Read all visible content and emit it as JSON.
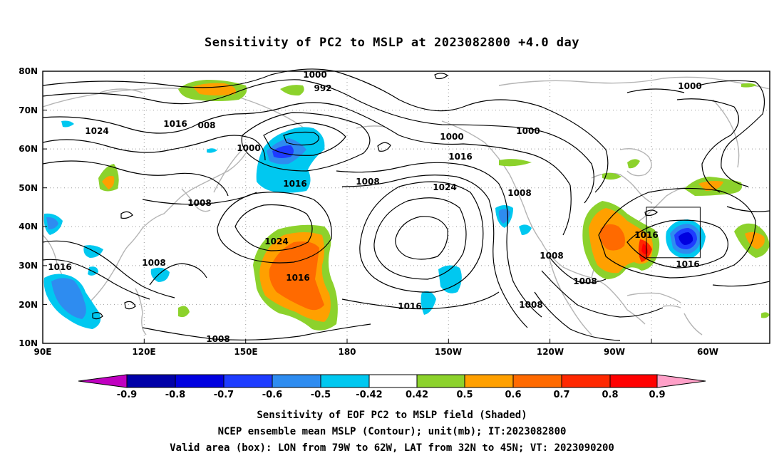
{
  "title": "Sensitivity of PC2 to MSLP at 2023082800 +4.0 day",
  "map": {
    "lat_labels": [
      "80N",
      "70N",
      "60N",
      "50N",
      "40N",
      "30N",
      "20N",
      "10N"
    ],
    "lon_labels": [
      "90E",
      "120E",
      "150E",
      "180",
      "150W",
      "120W",
      "90W",
      "60W"
    ],
    "lat_range": [
      10,
      80
    ],
    "lon_range": [
      90,
      305
    ],
    "contour_labels": [
      "1000",
      "992",
      "1000",
      "1024",
      "1016",
      "008",
      "1000",
      "1000",
      "1016",
      "1000",
      "1016",
      "1008",
      "1024",
      "1008",
      "1008",
      "1024",
      "1016",
      "1016",
      "1008",
      "1016",
      "1008",
      "1008",
      "1008",
      "1016",
      "1016",
      "1008"
    ],
    "valid_box": {
      "lon_from": "79W",
      "lon_to": "62W",
      "lat_from": "32N",
      "lat_to": "45N"
    }
  },
  "colorbar": {
    "labels": [
      "-0.9",
      "-0.8",
      "-0.7",
      "-0.6",
      "-0.5",
      "-0.42",
      "0.42",
      "0.5",
      "0.6",
      "0.7",
      "0.8",
      "0.9"
    ],
    "colors": [
      "#c000c0",
      "#0000a8",
      "#0000e0",
      "#1e3cff",
      "#2e8cf0",
      "#00c8f0",
      "#ffffff",
      "#8cd22c",
      "#ffa000",
      "#ff6a00",
      "#ff2800",
      "#ff0000",
      "#ffa0c8"
    ]
  },
  "captions": {
    "line1": "Sensitivity of EOF PC2 to MSLP field (Shaded)",
    "line2": "NCEP ensemble mean MSLP (Contour); unit(mb); IT:2023082800",
    "line3": "Valid area (box): LON from 79W to 62W, LAT from 32N to 45N; VT: 2023090200"
  }
}
